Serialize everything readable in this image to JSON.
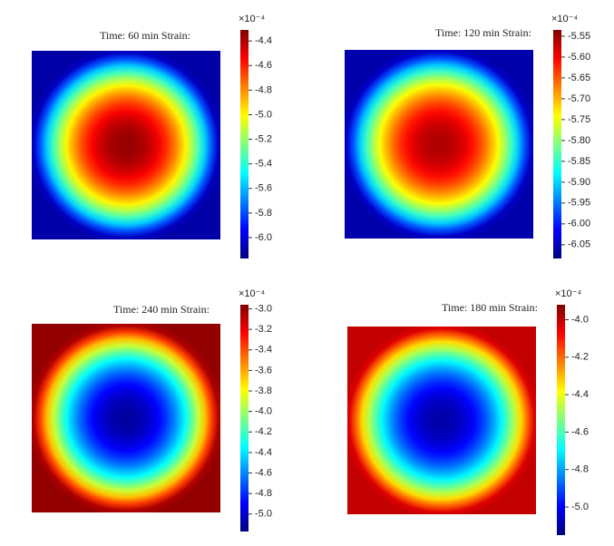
{
  "chart_data": [
    {
      "type": "heatmap",
      "title": "Time: 60 min   Strain:",
      "multiplier": "×10⁻⁴",
      "clim": [
        -6.17,
        -4.31
      ],
      "cticks": [
        -4.4,
        -4.6,
        -4.8,
        {
          "value": -5,
          "label": "-5.0"
        },
        -5.2,
        -5.4,
        -5.6,
        -5.8,
        {
          "value": -6,
          "label": "-6.0"
        }
      ],
      "field": {
        "center": -4.35,
        "edge": -6.1
      }
    },
    {
      "type": "heatmap",
      "title": "Time: 120 min   Strain:",
      "multiplier": "×10⁻⁴",
      "clim": [
        -6.083,
        -5.535
      ],
      "cticks": [
        -5.55,
        {
          "value": -5.6,
          "label": "-5.60"
        },
        -5.65,
        {
          "value": -5.7,
          "label": "-5.70"
        },
        -5.75,
        {
          "value": -5.8,
          "label": "-5.80"
        },
        -5.85,
        {
          "value": -5.9,
          "label": "-5.90"
        },
        -5.95,
        {
          "value": -6,
          "label": "-6.00"
        },
        -6.05
      ],
      "field": {
        "center": -5.56,
        "edge": -6.06
      }
    },
    {
      "type": "heatmap",
      "title": "Time: 240 min   Strain:",
      "multiplier": "×10⁻⁴",
      "clim": [
        -5.17,
        -2.96
      ],
      "cticks": [
        {
          "value": -3,
          "label": "-3.0"
        },
        -3.2,
        -3.4,
        -3.6,
        -3.8,
        {
          "value": -4,
          "label": "-4.0"
        },
        -4.2,
        -4.4,
        -4.6,
        -4.8,
        {
          "value": -5,
          "label": "-5.0"
        }
      ],
      "field": {
        "center": -5.1,
        "edge": -3.0
      }
    },
    {
      "type": "heatmap",
      "title": "Time: 180 min   Strain:",
      "multiplier": "×10⁻⁴",
      "clim": [
        -5.15,
        -3.92
      ],
      "cticks": [
        {
          "value": -4,
          "label": "-4.0"
        },
        -4.2,
        -4.4,
        -4.6,
        -4.8,
        {
          "value": -5,
          "label": "-5.0"
        }
      ],
      "field": {
        "center": -5.1,
        "edge": -4.0
      }
    }
  ]
}
